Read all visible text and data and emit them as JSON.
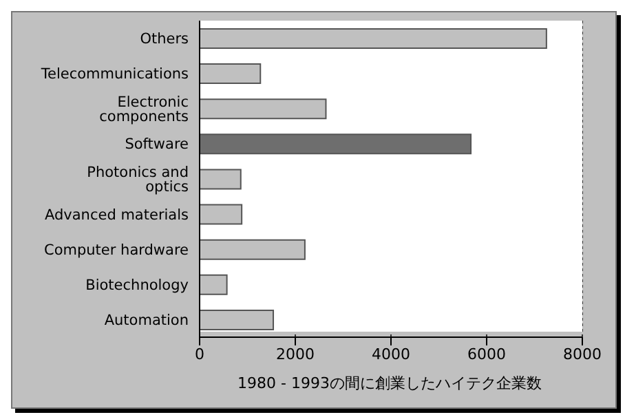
{
  "chart_data": {
    "type": "bar",
    "orientation": "horizontal",
    "xlabel": "1980 - 1993の間に創業したハイテク企業数",
    "categories": [
      "Others",
      "Telecommunications",
      "Electronic components",
      "Software",
      "Photonics and optics",
      "Advanced materials",
      "Computer hardware",
      "Biotechnology",
      "Automation"
    ],
    "values": [
      7250,
      1270,
      2640,
      5670,
      860,
      880,
      2200,
      570,
      1540
    ],
    "colors": [
      "#c0c0c0",
      "#c0c0c0",
      "#c0c0c0",
      "#6e6e6e",
      "#c0c0c0",
      "#c0c0c0",
      "#c0c0c0",
      "#c0c0c0",
      "#c0c0c0"
    ],
    "xlim": [
      0,
      8000
    ],
    "xticks": [
      0,
      2000,
      4000,
      6000,
      8000
    ],
    "grid": "x"
  }
}
